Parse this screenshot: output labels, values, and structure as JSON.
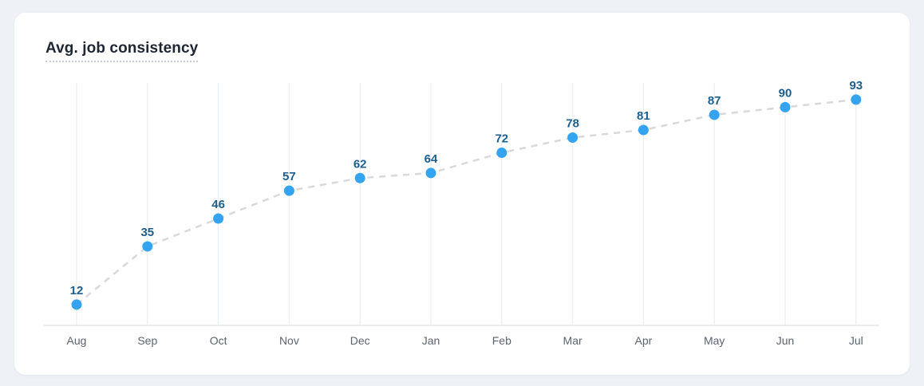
{
  "card": {
    "title": "Avg. job consistency"
  },
  "chart_data": {
    "type": "line",
    "title": "Avg. job consistency",
    "categories": [
      "Aug",
      "Sep",
      "Oct",
      "Nov",
      "Dec",
      "Jan",
      "Feb",
      "Mar",
      "Apr",
      "May",
      "Jun",
      "Jul"
    ],
    "values": [
      12,
      35,
      46,
      57,
      62,
      64,
      72,
      78,
      81,
      87,
      90,
      93
    ],
    "xlabel": "",
    "ylabel": "",
    "ylim": [
      0,
      100
    ],
    "grid": "vertical-only",
    "legend": "none",
    "line_style": "dashed",
    "point_labels_shown": true,
    "colors": {
      "point": "#35a4f0",
      "value_label": "#1c5f8f",
      "trend_line": "#d7d9dc",
      "grid_line": "#edf0f3",
      "axis_line": "#e3e7eb",
      "month_label": "#5b6470",
      "title_text": "#1f2533",
      "card_bg": "#ffffff",
      "page_bg": "#eef2f7"
    }
  }
}
